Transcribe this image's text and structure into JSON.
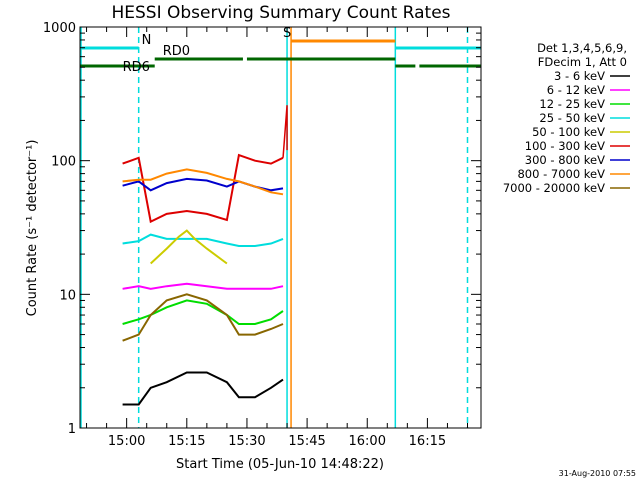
{
  "chart_data": {
    "type": "line",
    "title": "HESSI Observing Summary Count Rates",
    "xlabel": "Start Time (05-Jun-10 14:48:22)",
    "ylabel": "Count Rate (s⁻¹ detector⁻¹)",
    "y_scale": "log",
    "ylim": [
      1,
      1000
    ],
    "xlim": [
      "14:48:22",
      "16:28:22"
    ],
    "x_ticks": [
      "15:00",
      "15:15",
      "15:30",
      "15:45",
      "16:00",
      "16:15"
    ],
    "y_ticks": [
      "1",
      "10",
      "100",
      "1000"
    ],
    "grid": false,
    "legend_position": "right",
    "legend_header": [
      "Det 1,3,4,5,6,9,",
      "FDecim 1, Att 0"
    ],
    "footer": "31-Aug-2010 07:55",
    "series": [
      {
        "name": "3 - 6 keV",
        "color": "#000000",
        "points": [
          [
            "14:59",
            1.5
          ],
          [
            "15:03",
            1.5
          ],
          [
            "15:06",
            2.0
          ],
          [
            "15:10",
            2.2
          ],
          [
            "15:15",
            2.6
          ],
          [
            "15:20",
            2.6
          ],
          [
            "15:25",
            2.2
          ],
          [
            "15:28",
            1.7
          ],
          [
            "15:32",
            1.7
          ],
          [
            "15:36",
            2.0
          ],
          [
            "15:39",
            2.3
          ]
        ]
      },
      {
        "name": "6 - 12 keV",
        "color": "#ff00ff",
        "points": [
          [
            "14:59",
            11
          ],
          [
            "15:03",
            11.5
          ],
          [
            "15:06",
            11
          ],
          [
            "15:10",
            11.5
          ],
          [
            "15:15",
            12
          ],
          [
            "15:20",
            11.5
          ],
          [
            "15:25",
            11
          ],
          [
            "15:28",
            11
          ],
          [
            "15:32",
            11
          ],
          [
            "15:36",
            11
          ],
          [
            "15:39",
            11.5
          ]
        ]
      },
      {
        "name": "12 - 25 keV",
        "color": "#00dd00",
        "points": [
          [
            "14:59",
            6
          ],
          [
            "15:03",
            6.5
          ],
          [
            "15:06",
            7
          ],
          [
            "15:10",
            8
          ],
          [
            "15:15",
            9
          ],
          [
            "15:20",
            8.5
          ],
          [
            "15:25",
            7
          ],
          [
            "15:28",
            6
          ],
          [
            "15:32",
            6
          ],
          [
            "15:36",
            6.5
          ],
          [
            "15:39",
            7.5
          ]
        ]
      },
      {
        "name": "25 - 50 keV",
        "color": "#00dddd",
        "points": [
          [
            "14:59",
            24
          ],
          [
            "15:03",
            25
          ],
          [
            "15:06",
            28
          ],
          [
            "15:10",
            26
          ],
          [
            "15:15",
            26
          ],
          [
            "15:20",
            26
          ],
          [
            "15:25",
            24
          ],
          [
            "15:28",
            23
          ],
          [
            "15:32",
            23
          ],
          [
            "15:36",
            24
          ],
          [
            "15:39",
            26
          ]
        ]
      },
      {
        "name": "50 - 100 keV",
        "color": "#cccc00",
        "points": [
          [
            "15:06",
            17
          ],
          [
            "15:10",
            22
          ],
          [
            "15:13",
            27
          ],
          [
            "15:15",
            30
          ],
          [
            "15:17",
            26
          ],
          [
            "15:20",
            22
          ],
          [
            "15:25",
            17
          ]
        ]
      },
      {
        "name": "100 - 300 keV",
        "color": "#dd0000",
        "points": [
          [
            "14:59",
            95
          ],
          [
            "15:03",
            105
          ],
          [
            "15:06",
            35
          ],
          [
            "15:10",
            40
          ],
          [
            "15:15",
            42
          ],
          [
            "15:20",
            40
          ],
          [
            "15:25",
            36
          ],
          [
            "15:28",
            110
          ],
          [
            "15:32",
            100
          ],
          [
            "15:36",
            95
          ],
          [
            "15:39",
            105
          ]
        ]
      },
      {
        "name": "300 - 800 keV",
        "color": "#0000cc",
        "points": [
          [
            "14:59",
            65
          ],
          [
            "15:03",
            70
          ],
          [
            "15:06",
            60
          ],
          [
            "15:10",
            68
          ],
          [
            "15:15",
            73
          ],
          [
            "15:20",
            71
          ],
          [
            "15:25",
            64
          ],
          [
            "15:28",
            70
          ],
          [
            "15:32",
            64
          ],
          [
            "15:36",
            60
          ],
          [
            "15:39",
            62
          ]
        ]
      },
      {
        "name": "800 - 7000 keV",
        "color": "#ff8800",
        "points": [
          [
            "14:59",
            70
          ],
          [
            "15:03",
            72
          ],
          [
            "15:06",
            72
          ],
          [
            "15:10",
            80
          ],
          [
            "15:15",
            86
          ],
          [
            "15:20",
            81
          ],
          [
            "15:25",
            73
          ],
          [
            "15:28",
            70
          ],
          [
            "15:32",
            64
          ],
          [
            "15:36",
            58
          ],
          [
            "15:39",
            56
          ]
        ]
      },
      {
        "name": "7000 - 20000 keV",
        "color": "#886600",
        "points": [
          [
            "14:59",
            4.5
          ],
          [
            "15:03",
            5
          ],
          [
            "15:06",
            7
          ],
          [
            "15:10",
            9
          ],
          [
            "15:15",
            10
          ],
          [
            "15:20",
            9
          ],
          [
            "15:25",
            7
          ],
          [
            "15:28",
            5
          ],
          [
            "15:32",
            5
          ],
          [
            "15:36",
            5.5
          ],
          [
            "15:39",
            6
          ]
        ]
      }
    ],
    "annotations": {
      "flags": [
        {
          "label": "N",
          "color": "#00dddd",
          "segments": [
            [
              "14:48:22",
              "15:03"
            ],
            [
              "16:07",
              "16:28:22"
            ]
          ]
        },
        {
          "label": "S",
          "color": "#ff8800",
          "segments": [
            [
              "15:41",
              "16:07"
            ]
          ]
        },
        {
          "label": "RD0",
          "color": "#006600",
          "segments": [
            [
              "15:07",
              "15:29"
            ],
            [
              "15:30",
              "16:07"
            ]
          ]
        },
        {
          "label": "RD6",
          "color": "#006600",
          "segments": [
            [
              "14:48:22",
              "15:07"
            ],
            [
              "16:07",
              "16:12"
            ],
            [
              "16:13",
              "16:28:22"
            ]
          ]
        }
      ],
      "vlines": [
        {
          "time": "15:03",
          "color": "#00dddd",
          "dashed": true
        },
        {
          "time": "15:40",
          "color": "#00dddd",
          "dashed": false
        },
        {
          "time": "15:41",
          "color": "#ff8800",
          "dashed": false
        },
        {
          "time": "16:07",
          "color": "#00dddd",
          "dashed": false
        },
        {
          "time": "16:25",
          "color": "#00dddd",
          "dashed": true
        }
      ]
    }
  }
}
